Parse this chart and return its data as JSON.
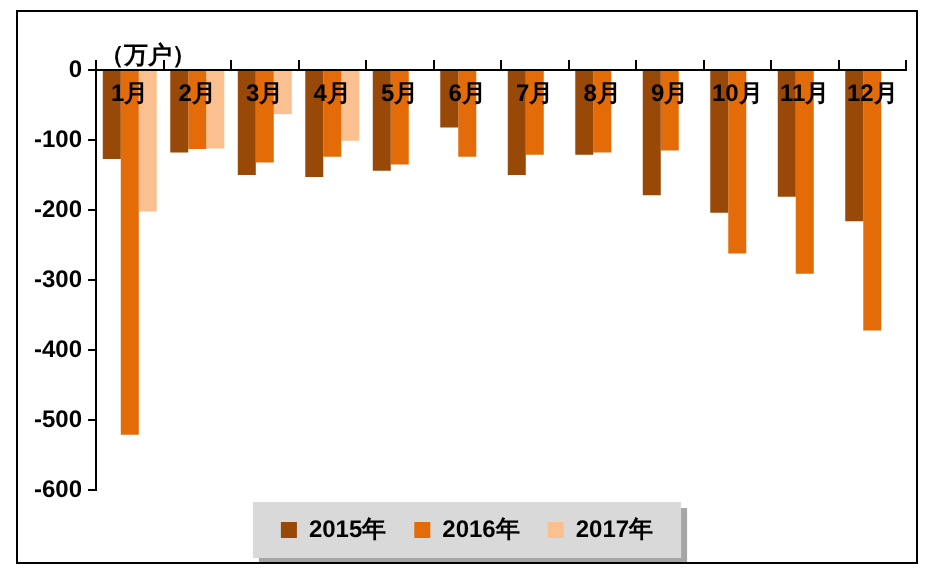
{
  "chart_data": {
    "type": "bar",
    "ylabel": "（万户）",
    "categories": [
      "1月",
      "2月",
      "3月",
      "4月",
      "5月",
      "6月",
      "7月",
      "8月",
      "9月",
      "10月",
      "11月",
      "12月"
    ],
    "series": [
      {
        "name": "2015年",
        "color": "#984807",
        "values": [
          -127,
          -118,
          -150,
          -153,
          -144,
          -82,
          -150,
          -121,
          -179,
          -204,
          -181,
          -216
        ]
      },
      {
        "name": "2016年",
        "color": "#e36c09",
        "values": [
          -521,
          -113,
          -132,
          -124,
          -135,
          -124,
          -121,
          -118,
          -115,
          -262,
          -291,
          -372
        ]
      },
      {
        "name": "2017年",
        "color": "#fac090",
        "values": [
          -202,
          -112,
          -63,
          -101,
          null,
          null,
          null,
          null,
          null,
          null,
          null,
          null
        ]
      }
    ],
    "ylim": [
      -600,
      0
    ],
    "yticks": [
      -600,
      -500,
      -400,
      -300,
      -200,
      -100,
      0
    ],
    "grid": false,
    "legend": "bottom"
  }
}
